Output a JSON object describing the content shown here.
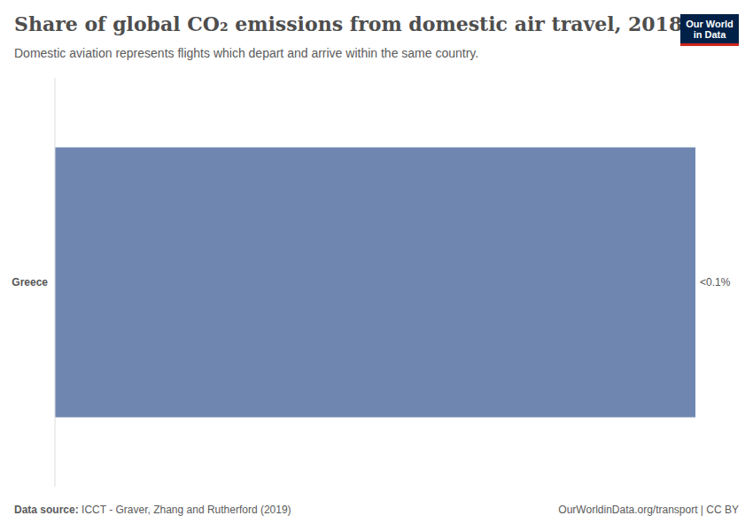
{
  "chart_data": {
    "type": "bar",
    "title": "Share of global CO₂ emissions from domestic air travel, 2018",
    "subtitle": "Domestic aviation represents flights which depart and arrive within the same country.",
    "categories": [
      "Greece"
    ],
    "values": [
      0.07
    ],
    "value_labels": [
      "<0.1%"
    ],
    "color": "#6f87b0",
    "orientation": "horizontal",
    "data_labels": true,
    "tick_labels": "y",
    "source_label": "Data source:",
    "source": "ICCT - Graver, Zhang and Rutherford (2019)",
    "footer_right": "OurWorldinData.org/transport | CC BY",
    "logo": [
      "Our World",
      "in Data"
    ]
  }
}
